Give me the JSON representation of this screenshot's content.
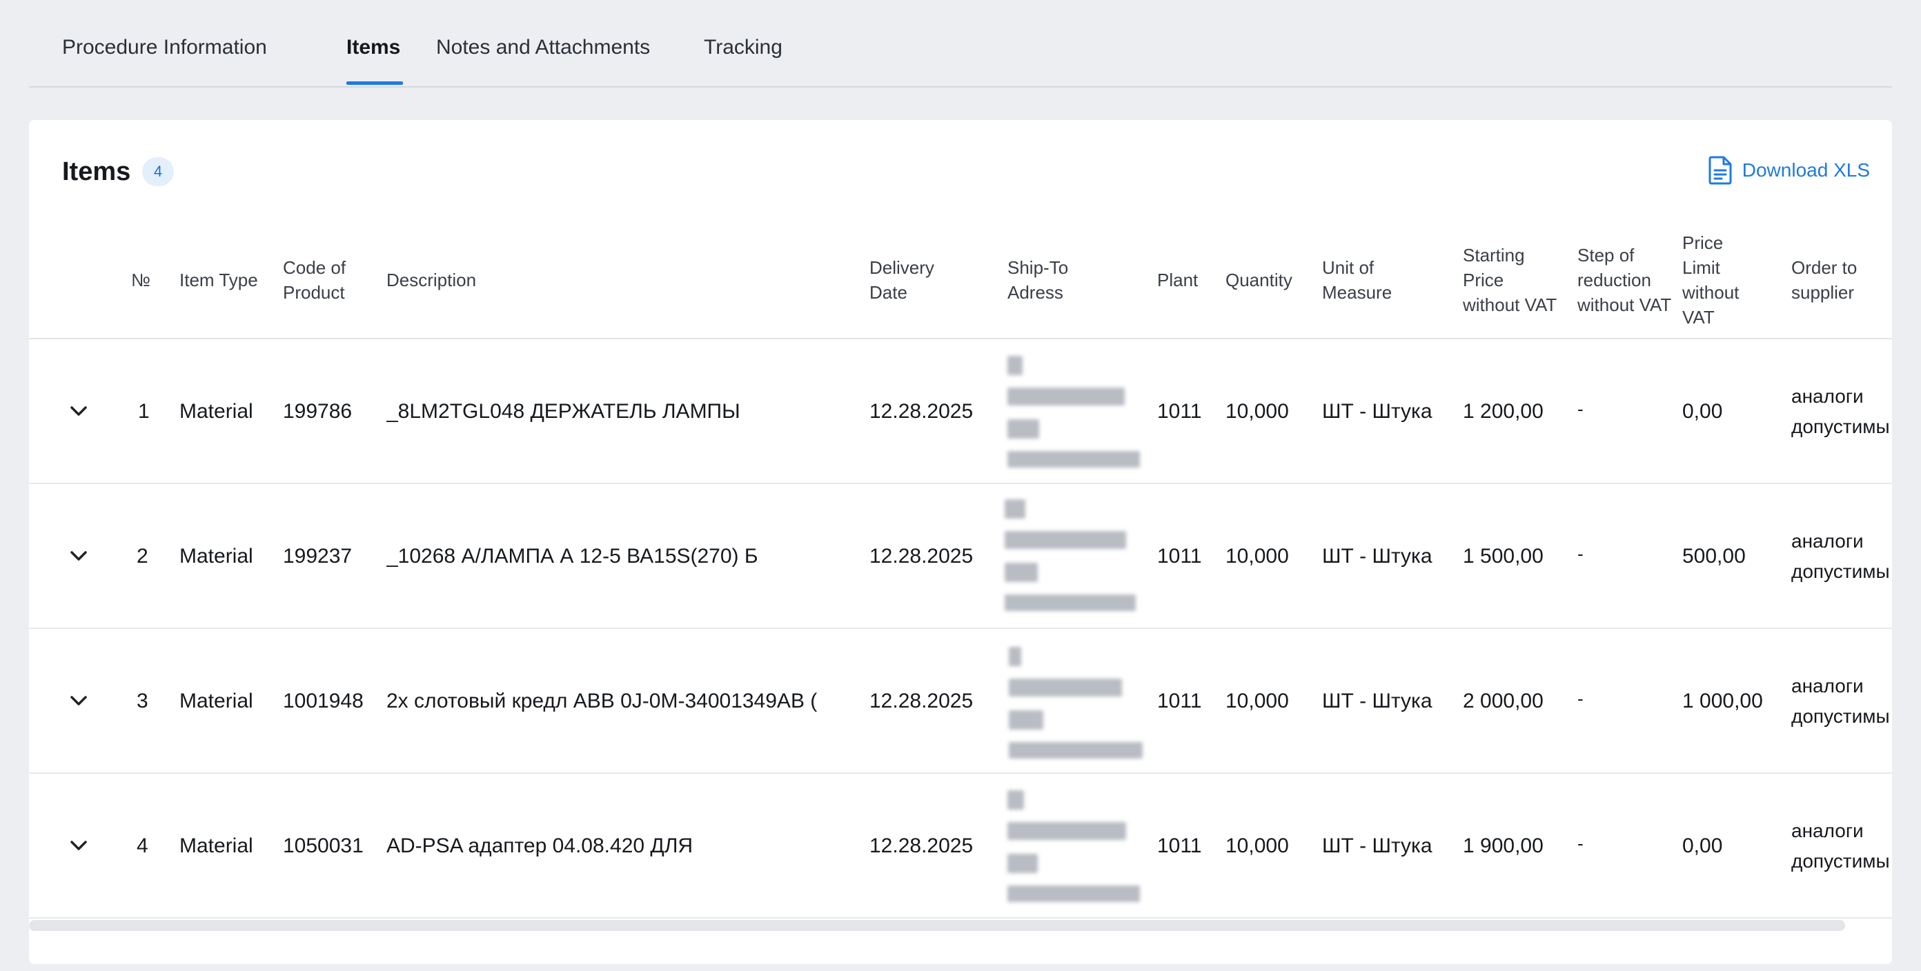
{
  "tabs": [
    {
      "label": "Procedure Information",
      "active": false
    },
    {
      "label": "Items",
      "active": true
    },
    {
      "label": "Notes and Attachments",
      "active": false
    },
    {
      "label": "Tracking",
      "active": false
    }
  ],
  "card": {
    "title": "Items",
    "count": "4",
    "download_label": "Download XLS"
  },
  "table": {
    "headers": {
      "num": "№",
      "item_type": "Item Type",
      "code": "Code of Product",
      "description": "Description",
      "delivery": "Delivery Date",
      "ship_to": "Ship-To Adress",
      "plant": "Plant",
      "quantity": "Quantity",
      "unit": "Unit of Measure",
      "start_price": "Starting Price without VAT",
      "step": "Step of reduction without VAT",
      "limit": "Price Limit without VAT",
      "order": "Order to supplier"
    },
    "rows": [
      {
        "num": "1",
        "item_type": "Material",
        "code": "199786",
        "description": "_8LM2TGL048 ДЕРЖАТЕЛЬ ЛАМПЫ",
        "delivery": "12.28.2025",
        "plant": "1011",
        "quantity": "10,000",
        "unit": "ШТ - Штука",
        "start_price": "1 200,00",
        "step": "-",
        "limit": "0,00",
        "order_line1": "аналоги",
        "order_line2": "допустимы"
      },
      {
        "num": "2",
        "item_type": "Material",
        "code": "199237",
        "description": "_10268 А/ЛАМПА А 12-5 ВА15S(270) Б",
        "delivery": "12.28.2025",
        "plant": "1011",
        "quantity": "10,000",
        "unit": "ШТ - Штука",
        "start_price": "1 500,00",
        "step": "-",
        "limit": "500,00",
        "order_line1": "аналоги",
        "order_line2": "допустимы"
      },
      {
        "num": "3",
        "item_type": "Material",
        "code": "1001948",
        "description": "2х слотовый кредл ABB 0J-0M-34001349AB (",
        "delivery": "12.28.2025",
        "plant": "1011",
        "quantity": "10,000",
        "unit": "ШТ - Штука",
        "start_price": "2 000,00",
        "step": "-",
        "limit": "1 000,00",
        "order_line1": "аналоги",
        "order_line2": "допустимы"
      },
      {
        "num": "4",
        "item_type": "Material",
        "code": "1050031",
        "description": "AD-PSA адаптер 04.08.420 ДЛЯ",
        "delivery": "12.28.2025",
        "plant": "1011",
        "quantity": "10,000",
        "unit": "ШТ - Штука",
        "start_price": "1 900,00",
        "step": "-",
        "limit": "0,00",
        "order_line1": "аналоги",
        "order_line2": "допустимы"
      }
    ]
  },
  "icons": {
    "row_toggle": "chevron-down-icon",
    "download": "document-icon"
  },
  "colors": {
    "accent": "#1f7ae0",
    "badge_bg": "#e4effc",
    "page_bg": "#eceef1"
  }
}
